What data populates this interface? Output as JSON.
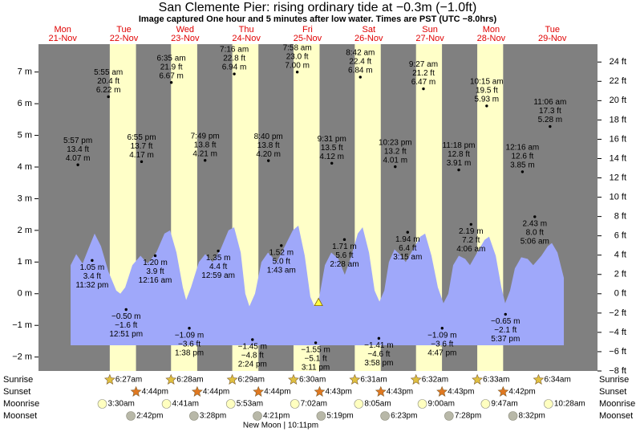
{
  "chart_data": {
    "type": "tide",
    "title": "San Clemente Pier: rising  ordinary tide at −0.3m (−1.0ft)",
    "subtitle": "Image captured One hour and 5 minutes after low water. Times are PST (UTC −8.0hrs)",
    "row_labels": {
      "sunrise": "Sunrise",
      "sunset": "Sunset",
      "moonrise": "Moonrise",
      "moonset": "Moonset"
    },
    "moon_phase": "New Moon | 10:11pm",
    "colors": {
      "night": "#808080",
      "day": "#ffffc8",
      "water": "#9fa8fa",
      "day_label": "#e00000",
      "sunrise": "#e0c040",
      "sunset": "#e07820",
      "moonrise": "#ffffc0",
      "moonset": "#b8b8a8"
    },
    "xlim": [
      2.5,
      221.7
    ],
    "ylim": [
      -2.44,
      7.88
    ],
    "yticks": [
      {
        "value": 7,
        "label": "7 m"
      },
      {
        "value": 6,
        "label": "6 m"
      },
      {
        "value": 5,
        "label": "5 m"
      },
      {
        "value": 4,
        "label": "4 m"
      },
      {
        "value": 3,
        "label": "3 m"
      },
      {
        "value": 2,
        "label": "2 m"
      },
      {
        "value": 1,
        "label": "1 m"
      },
      {
        "value": 0,
        "label": "0 m"
      },
      {
        "value": -1,
        "label": "−1 m"
      },
      {
        "value": -2,
        "label": "−2 m"
      }
    ],
    "y2lim": [
      -8,
      25.85
    ],
    "y2ticks": [
      {
        "value": 24,
        "label": "24 ft"
      },
      {
        "value": 22,
        "label": "22 ft"
      },
      {
        "value": 20,
        "label": "20 ft"
      },
      {
        "value": 18,
        "label": "18 ft"
      },
      {
        "value": 16,
        "label": "16 ft"
      },
      {
        "value": 14,
        "label": "14 ft"
      },
      {
        "value": 12,
        "label": "12 ft"
      },
      {
        "value": 10,
        "label": "10 ft"
      },
      {
        "value": 8,
        "label": "8 ft"
      },
      {
        "value": 6,
        "label": "6 ft"
      },
      {
        "value": 4,
        "label": "4 ft"
      },
      {
        "value": 2,
        "label": "2 ft"
      },
      {
        "value": 0,
        "label": "0 ft"
      },
      {
        "value": -2,
        "label": "−2 ft"
      },
      {
        "value": -4,
        "label": "−4 ft"
      },
      {
        "value": -6,
        "label": "−6 ft"
      },
      {
        "value": -8,
        "label": "−8 ft"
      }
    ],
    "curve": {
      "x": [
        15.1,
        17.3,
        19.8,
        22.0,
        24.5,
        27.0,
        29.9,
        33.0,
        34.6,
        36.5,
        39.3,
        42.5,
        45.3,
        48.7,
        51.9,
        54.1,
        56.6,
        59.1,
        60.4,
        62.3,
        65.4,
        67.9,
        70.8,
        73.9,
        77.0,
        79.2,
        81.8,
        83.6,
        85.2,
        87.4,
        89.9,
        92.5,
        95.9,
        99.1,
        102.2,
        104.4,
        106.9,
        109.1,
        110.7,
        112.6,
        114.8,
        117.3,
        120.1,
        122.6,
        125.2,
        127.7,
        129.6,
        132.1,
        134.3,
        136.2,
        138.1,
        139.9,
        142.1,
        144.7,
        146.5,
        149.4,
        152.2,
        154.1,
        156.6,
        159.1,
        161.3,
        163.2,
        165.1,
        167.3,
        169.8,
        171.7,
        174.5,
        177.4,
        179.2,
        181.8,
        184.0,
        185.5,
        187.4,
        189.3,
        191.8,
        194.3,
        196.5,
        199.7,
        202.2,
        203.8,
        206.0,
        208.5
      ],
      "values": [
        0.9,
        1.25,
        0.95,
        1.4,
        1.9,
        1.5,
        0.7,
        0.1,
        0.0,
        0.2,
        0.9,
        1.2,
        0.95,
        1.3,
        1.9,
        2.0,
        1.3,
        0.2,
        -0.2,
        0.2,
        1.0,
        1.25,
        1.0,
        1.4,
        2.0,
        2.1,
        1.3,
        0.0,
        -0.4,
        0.0,
        1.0,
        1.3,
        1.0,
        1.5,
        2.0,
        2.15,
        1.2,
        -0.1,
        -0.4,
        -0.1,
        0.9,
        1.3,
        1.1,
        0.6,
        1.2,
        1.9,
        2.1,
        1.3,
        0.1,
        -0.25,
        0.1,
        1.0,
        1.4,
        1.2,
        1.0,
        1.4,
        1.8,
        1.9,
        1.2,
        0.2,
        -0.3,
        0.0,
        0.9,
        1.2,
        1.1,
        0.9,
        1.3,
        1.7,
        1.8,
        1.2,
        0.2,
        -0.3,
        0.1,
        0.8,
        1.15,
        1.1,
        0.9,
        1.2,
        1.5,
        1.6,
        1.3,
        0.5
      ]
    },
    "current": {
      "x": 112.3,
      "value": -0.3
    },
    "days": [
      {
        "weekday": "Mon",
        "date": "21-Nov",
        "tides": [
          {
            "time": "5:57 pm",
            "ft": "13.4 ft",
            "m": 4.07,
            "m_label": "4.07 m"
          },
          {
            "time": "11:32 pm",
            "ft": "3.4 ft",
            "m": 1.05,
            "m_label": "1.05 m"
          }
        ]
      },
      {
        "weekday": "Tue",
        "date": "22-Nov",
        "sunrise": "6:27am",
        "sunset": "4:44pm",
        "moonrise": "3:30am",
        "moonset": "2:42pm",
        "tides": [
          {
            "time": "5:55 am",
            "ft": "20.4 ft",
            "m": 6.22,
            "m_label": "6.22 m"
          },
          {
            "time": "12:51 pm",
            "ft": "−1.6 ft",
            "m": -0.5,
            "m_label": "−0.50 m"
          },
          {
            "time": "6:55 pm",
            "ft": "13.7 ft",
            "m": 4.17,
            "m_label": "4.17 m"
          }
        ]
      },
      {
        "weekday": "Wed",
        "date": "23-Nov",
        "sunrise": "6:28am",
        "sunset": "4:44pm",
        "moonrise": "4:41am",
        "moonset": "3:28pm",
        "tides": [
          {
            "time": "12:16 am",
            "ft": "3.9 ft",
            "m": 1.2,
            "m_label": "1.20 m"
          },
          {
            "time": "6:35 am",
            "ft": "21.9 ft",
            "m": 6.67,
            "m_label": "6.67 m"
          },
          {
            "time": "1:38 pm",
            "ft": "−3.6 ft",
            "m": -1.09,
            "m_label": "−1.09 m"
          },
          {
            "time": "7:49 pm",
            "ft": "13.8 ft",
            "m": 4.21,
            "m_label": "4.21 m"
          }
        ]
      },
      {
        "weekday": "Thu",
        "date": "24-Nov",
        "sunrise": "6:29am",
        "sunset": "4:44pm",
        "moonrise": "5:53am",
        "moonset": "4:21pm",
        "tides": [
          {
            "time": "12:59 am",
            "ft": "4.4 ft",
            "m": 1.35,
            "m_label": "1.35 m"
          },
          {
            "time": "7:16 am",
            "ft": "22.8 ft",
            "m": 6.94,
            "m_label": "6.94 m"
          },
          {
            "time": "2:24 pm",
            "ft": "−4.8 ft",
            "m": -1.45,
            "m_label": "−1.45 m"
          },
          {
            "time": "8:40 pm",
            "ft": "13.8 ft",
            "m": 4.2,
            "m_label": "4.20 m"
          }
        ]
      },
      {
        "weekday": "Fri",
        "date": "25-Nov",
        "sunrise": "6:30am",
        "sunset": "4:43pm",
        "moonrise": "7:02am",
        "moonset": "5:19pm",
        "tides": [
          {
            "time": "1:43 am",
            "ft": "5.0 ft",
            "m": 1.52,
            "m_label": "1.52 m"
          },
          {
            "time": "7:58 am",
            "ft": "23.0 ft",
            "m": 7.0,
            "m_label": "7.00 m"
          },
          {
            "time": "3:11 pm",
            "ft": "−5.1 ft",
            "m": -1.55,
            "m_label": "−1.55 m"
          },
          {
            "time": "9:31 pm",
            "ft": "13.5 ft",
            "m": 4.12,
            "m_label": "4.12 m"
          }
        ]
      },
      {
        "weekday": "Sat",
        "date": "26-Nov",
        "sunrise": "6:31am",
        "sunset": "4:43pm",
        "moonrise": "8:05am",
        "moonset": "6:23pm",
        "tides": [
          {
            "time": "2:28 am",
            "ft": "5.6 ft",
            "m": 1.71,
            "m_label": "1.71 m"
          },
          {
            "time": "8:42 am",
            "ft": "22.4 ft",
            "m": 6.84,
            "m_label": "6.84 m"
          },
          {
            "time": "3:58 pm",
            "ft": "−4.6 ft",
            "m": -1.41,
            "m_label": "−1.41 m"
          },
          {
            "time": "10:23 pm",
            "ft": "13.2 ft",
            "m": 4.01,
            "m_label": "4.01 m"
          }
        ]
      },
      {
        "weekday": "Sun",
        "date": "27-Nov",
        "sunrise": "6:32am",
        "sunset": "4:43pm",
        "moonrise": "9:00am",
        "moonset": "7:28pm",
        "tides": [
          {
            "time": "3:15 am",
            "ft": "6.4 ft",
            "m": 1.94,
            "m_label": "1.94 m"
          },
          {
            "time": "9:27 am",
            "ft": "21.2 ft",
            "m": 6.47,
            "m_label": "6.47 m"
          },
          {
            "time": "4:47 pm",
            "ft": "−3.6 ft",
            "m": -1.09,
            "m_label": "−1.09 m"
          },
          {
            "time": "11:18 pm",
            "ft": "12.8 ft",
            "m": 3.91,
            "m_label": "3.91 m"
          }
        ]
      },
      {
        "weekday": "Mon",
        "date": "28-Nov",
        "sunrise": "6:33am",
        "sunset": "4:42pm",
        "moonrise": "9:47am",
        "moonset": "8:32pm",
        "tides": [
          {
            "time": "4:06 am",
            "ft": "7.2 ft",
            "m": 2.19,
            "m_label": "2.19 m"
          },
          {
            "time": "10:15 am",
            "ft": "19.5 ft",
            "m": 5.93,
            "m_label": "5.93 m"
          },
          {
            "time": "5:37 pm",
            "ft": "−2.1 ft",
            "m": -0.65,
            "m_label": "−0.65 m"
          }
        ]
      },
      {
        "weekday": "Tue",
        "date": "29-Nov",
        "sunrise": "6:34am",
        "moonrise": "10:28am",
        "tides": [
          {
            "time": "12:16 am",
            "ft": "12.6 ft",
            "m": 3.85,
            "m_label": "3.85 m"
          },
          {
            "time": "5:06 am",
            "ft": "8.0 ft",
            "m": 2.43,
            "m_label": "2.43 m"
          },
          {
            "time": "11:06 am",
            "ft": "17.3 ft",
            "m": 5.28,
            "m_label": "5.28 m"
          }
        ]
      }
    ]
  }
}
